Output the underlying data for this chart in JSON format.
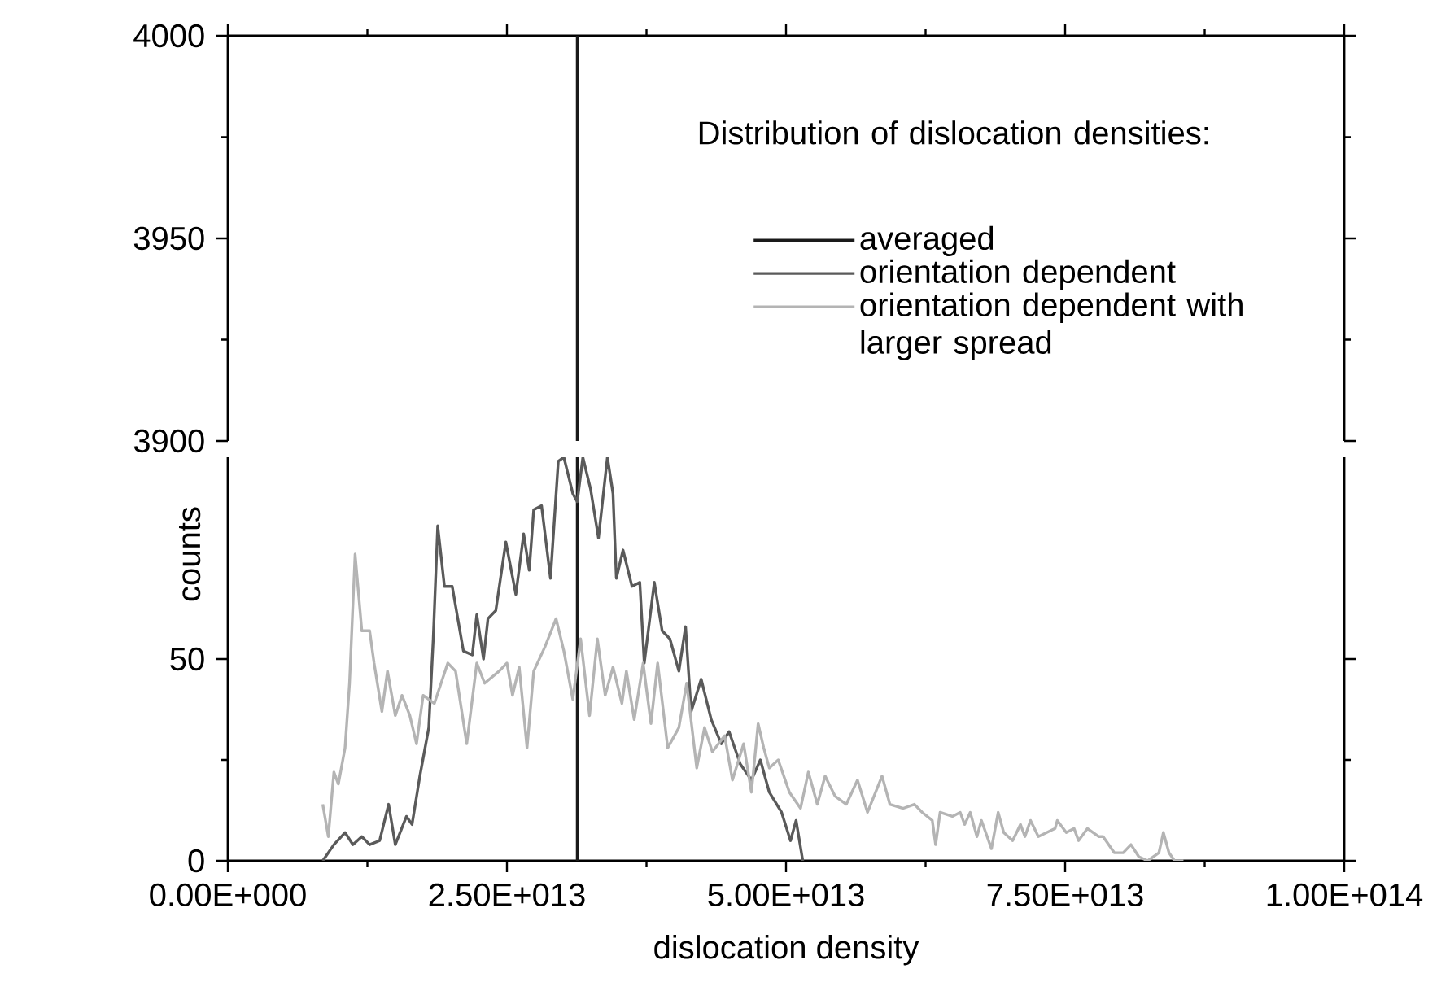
{
  "chart_data": [
    {
      "type": "line",
      "xlim": [
        0,
        100000000000000.0
      ],
      "ylim": [
        3900,
        4000
      ],
      "yticks": [
        3900,
        3950,
        4000
      ],
      "tick_labels": "y",
      "xticks": [
        {
          "value": 0,
          "label": null
        },
        {
          "value": 25000000000000.0,
          "label": null
        },
        {
          "value": 50000000000000.0,
          "label": null
        },
        {
          "value": 75000000000000.0,
          "label": null
        },
        {
          "value": 100000000000000.0,
          "label": null
        }
      ],
      "series": [
        {
          "color": "#1a1a1a",
          "x": [
            31300000000000.0,
            31300000000000.0
          ],
          "values": [
            3900,
            4000
          ]
        }
      ]
    },
    {
      "type": "line",
      "xlim": [
        0,
        100000000000000.0
      ],
      "ylim": [
        0,
        100
      ],
      "yticks": [
        0,
        50
      ],
      "xlabel": "dislocation density",
      "ylabel": "counts",
      "legend": "top right",
      "legend_title": "Distribution of dislocation densities:",
      "xticks": [
        {
          "value": 0,
          "label": "0.00E+000"
        },
        {
          "value": 25000000000000.0,
          "label": "2.50E+013"
        },
        {
          "value": 50000000000000.0,
          "label": "5.00E+013"
        },
        {
          "value": 75000000000000.0,
          "label": "7.50E+013"
        },
        {
          "value": 100000000000000.0,
          "label": "1.00E+014"
        }
      ],
      "series": [
        {
          "name": "averaged",
          "color": "#1a1a1a",
          "x": [
            31300000000000.0,
            31300000000000.0
          ],
          "values": [
            0,
            100
          ]
        },
        {
          "name": "orientation dependent",
          "color": "#5a5a5a",
          "x": [
            8500000000000.0,
            9500000000000.0,
            10500000000000.0,
            11200000000000.0,
            12000000000000.0,
            12700000000000.0,
            13600000000000.0,
            14400000000000.0,
            15000000000000.0,
            16000000000000.0,
            16500000000000.0,
            17200000000000.0,
            18000000000000.0,
            18400000000000.0,
            18800000000000.0,
            19400000000000.0,
            20100000000000.0,
            21100000000000.0,
            21900000000000.0,
            22300000000000.0,
            22900000000000.0,
            23300000000000.0,
            24000000000000.0,
            24900000000000.0,
            25800000000000.0,
            26500000000000.0,
            27000000000000.0,
            27400000000000.0,
            28100000000000.0,
            28900000000000.0,
            29600000000000.0,
            30100000000000.0,
            30900000000000.0,
            31300000000000.0,
            31800000000000.0,
            32500000000000.0,
            33200000000000.0,
            34000000000000.0,
            34500000000000.0,
            34800000000000.0,
            35400000000000.0,
            36200000000000.0,
            36900000000000.0,
            37300000000000.0,
            38200000000000.0,
            38900000000000.0,
            39600000000000.0,
            40400000000000.0,
            41000000000000.0,
            41500000000000.0,
            42400000000000.0,
            43300000000000.0,
            44200000000000.0,
            44900000000000.0,
            45900000000000.0,
            46900000000000.0,
            47700000000000.0,
            48500000000000.0,
            49600000000000.0,
            50400000000000.0,
            50900000000000.0,
            51500000000000.0
          ],
          "values": [
            0,
            4,
            7,
            4,
            6,
            4,
            5,
            14,
            4,
            11,
            9,
            21,
            33,
            55,
            83,
            68,
            68,
            52,
            51,
            61,
            50,
            60,
            62,
            79,
            66,
            81,
            72,
            87,
            88,
            70,
            99,
            100,
            91,
            89,
            100,
            92,
            80,
            100,
            91,
            70,
            77,
            68,
            69,
            49,
            69,
            57,
            55,
            47,
            58,
            37,
            45,
            35,
            29,
            32,
            24,
            20,
            25,
            17,
            12,
            5,
            10,
            0
          ]
        },
        {
          "name": "orientation dependent with larger spread",
          "color": "#b4b4b4",
          "x": [
            8500000000000.0,
            9000000000000.0,
            9500000000000.0,
            9900000000000.0,
            10500000000000.0,
            10900000000000.0,
            11400000000000.0,
            12000000000000.0,
            12700000000000.0,
            13100000000000.0,
            13800000000000.0,
            14300000000000.0,
            15000000000000.0,
            15600000000000.0,
            16300000000000.0,
            16900000000000.0,
            17500000000000.0,
            18500000000000.0,
            19700000000000.0,
            20400000000000.0,
            21400000000000.0,
            22300000000000.0,
            23000000000000.0,
            24300000000000.0,
            25000000000000.0,
            25500000000000.0,
            26100000000000.0,
            26800000000000.0,
            27400000000000.0,
            28400000000000.0,
            29400000000000.0,
            30100000000000.0,
            30900000000000.0,
            31600000000000.0,
            32400000000000.0,
            33100000000000.0,
            33800000000000.0,
            34500000000000.0,
            35300000000000.0,
            35700000000000.0,
            36400000000000.0,
            37200000000000.0,
            37900000000000.0,
            38500000000000.0,
            39400000000000.0,
            40400000000000.0,
            41100000000000.0,
            42000000000000.0,
            42700000000000.0,
            43400000000000.0,
            44500000000000.0,
            45200000000000.0,
            46200000000000.0,
            46900000000000.0,
            47500000000000.0,
            48000000000000.0,
            48500000000000.0,
            49300000000000.0,
            50300000000000.0,
            51300000000000.0,
            52000000000000.0,
            52800000000000.0,
            53500000000000.0,
            54400000000000.0,
            55400000000000.0,
            56400000000000.0,
            57300000000000.0,
            58600000000000.0,
            59300000000000.0,
            60500000000000.0,
            61500000000000.0,
            62200000000000.0,
            63100000000000.0,
            63400000000000.0,
            63800000000000.0,
            64900000000000.0,
            65600000000000.0,
            66000000000000.0,
            66500000000000.0,
            67100000000000.0,
            67500000000000.0,
            68400000000000.0,
            69000000000000.0,
            69500000000000.0,
            70300000000000.0,
            71000000000000.0,
            71400000000000.0,
            71900000000000.0,
            72600000000000.0,
            74100000000000.0,
            74300000000000.0,
            75100000000000.0,
            75800000000000.0,
            76200000000000.0,
            77000000000000.0,
            78000000000000.0,
            78400000000000.0,
            79400000000000.0,
            80200000000000.0,
            80900000000000.0,
            81600000000000.0,
            82400000000000.0,
            83400000000000.0,
            83800000000000.0,
            84300000000000.0,
            84800000000000.0,
            85600000000000.0
          ],
          "values": [
            14,
            6,
            22,
            19,
            28,
            44,
            76,
            57,
            57,
            49,
            37,
            47,
            36,
            41,
            36,
            29,
            41,
            39,
            49,
            47,
            29,
            49,
            44,
            47,
            49,
            41,
            48,
            28,
            47,
            53,
            60,
            52,
            40,
            55,
            36,
            55,
            41,
            48,
            39,
            47,
            35,
            49,
            34,
            49,
            28,
            33,
            44,
            23,
            33,
            27,
            31,
            20,
            29,
            17,
            34,
            28,
            23,
            25,
            17,
            13,
            22,
            14,
            21,
            16,
            14,
            20,
            12,
            21,
            14,
            13,
            14,
            12,
            10,
            4,
            12,
            11,
            12,
            9,
            12,
            6,
            10,
            3,
            12,
            7,
            5,
            9,
            6,
            10,
            6,
            8,
            10,
            7,
            8,
            5,
            8,
            6,
            6,
            2,
            2,
            4,
            1,
            0,
            2,
            7,
            2,
            0,
            0
          ]
        }
      ]
    }
  ]
}
